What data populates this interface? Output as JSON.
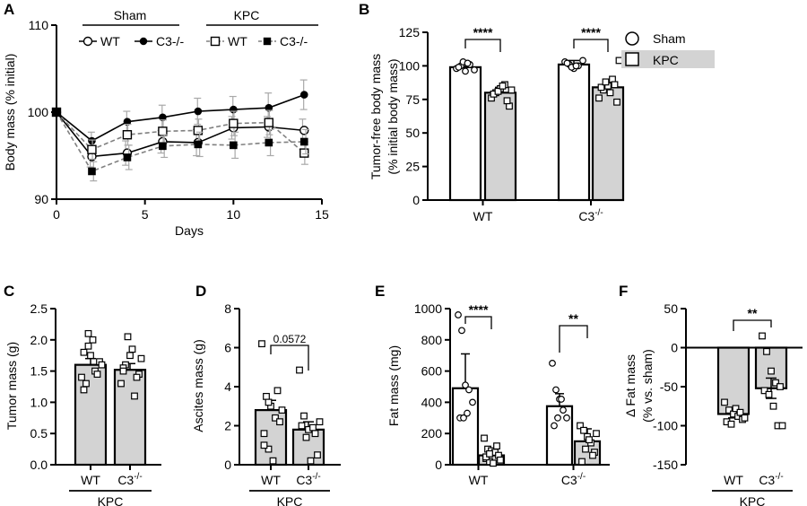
{
  "panel_labels": [
    "A",
    "B",
    "C",
    "D",
    "E",
    "F"
  ],
  "colors": {
    "sham": "#ffffff",
    "kpc": "#d3d3d3",
    "line": "#000000",
    "dash": "#808080",
    "err": "#a9a9a9"
  },
  "chart_data": [
    {
      "panel": "A",
      "type": "line",
      "xlabel": "Days",
      "ylabel": "Body mass (% initial)",
      "xlim": [
        0,
        15
      ],
      "ylim": [
        90,
        110
      ],
      "xticks": [
        0,
        5,
        10,
        15
      ],
      "yticks": [
        90,
        100,
        110
      ],
      "x": [
        0,
        2,
        4,
        6,
        8,
        10,
        12,
        14
      ],
      "legend": {
        "groups": [
          "Sham",
          "KPC"
        ],
        "series_labels": [
          "WT",
          "C3-/-",
          "WT",
          "C3-/-"
        ]
      },
      "series": [
        {
          "name": "Sham WT",
          "marker": "circle-open",
          "line": "solid",
          "values": [
            100,
            94.9,
            95.3,
            96.6,
            96.5,
            98.2,
            98.3,
            97.9
          ],
          "err": [
            0,
            1.2,
            1.4,
            1.3,
            1.5,
            1.3,
            1.2,
            1.3
          ]
        },
        {
          "name": "Sham C3-/-",
          "marker": "circle-filled",
          "line": "solid",
          "values": [
            100,
            96.7,
            98.9,
            99.4,
            100.1,
            100.3,
            100.5,
            102.0
          ],
          "err": [
            0,
            1.0,
            1.2,
            1.4,
            1.5,
            1.5,
            1.7,
            1.7
          ]
        },
        {
          "name": "KPC WT",
          "marker": "square-open",
          "line": "dashed",
          "values": [
            100,
            95.7,
            97.4,
            97.8,
            97.9,
            98.7,
            98.8,
            95.3
          ],
          "err": [
            0,
            1.1,
            1.2,
            1.3,
            1.3,
            1.4,
            1.4,
            1.3
          ]
        },
        {
          "name": "KPC C3-/-",
          "marker": "square-filled",
          "line": "dashed",
          "values": [
            100,
            93.2,
            94.8,
            96.1,
            96.3,
            96.2,
            96.5,
            96.6
          ],
          "err": [
            0,
            1.1,
            1.4,
            1.3,
            1.4,
            1.5,
            1.5,
            1.4
          ]
        }
      ]
    },
    {
      "panel": "B",
      "type": "bar",
      "ylabel": "Tumor-free body mass",
      "ylabel2": "(% initial body mass)",
      "ylim": [
        0,
        125
      ],
      "yticks": [
        0,
        25,
        50,
        75,
        100,
        125
      ],
      "categories": [
        "WT",
        "C3"
      ],
      "category_sup": [
        "",
        "-/-"
      ],
      "legend": [
        "Sham",
        "KPC"
      ],
      "series": [
        {
          "name": "Sham",
          "values": [
            99,
            101
          ],
          "err": [
            3,
            3
          ],
          "points": [
            [
              98,
              100,
              96,
              101,
              97,
              99,
              103,
              102
            ],
            [
              103,
              101,
              98,
              100,
              104,
              102,
              99,
              100
            ]
          ]
        },
        {
          "name": "KPC",
          "values": [
            80,
            84
          ],
          "err": [
            4,
            5
          ],
          "points": [
            [
              76,
              80,
              83,
              86,
              70,
              79,
              81,
              85,
              74,
              82
            ],
            [
              76,
              82,
              85,
              90,
              73,
              84,
              88,
              80,
              86,
              104
            ]
          ]
        }
      ],
      "significance": [
        "****",
        "****"
      ]
    },
    {
      "panel": "C",
      "type": "bar",
      "ylabel": "Tumor mass (g)",
      "ylim": [
        0,
        2.5
      ],
      "yticks": [
        0.0,
        0.5,
        1.0,
        1.5,
        2.0,
        2.5
      ],
      "ytick_labels": [
        "0.0",
        "0.5",
        "1.0",
        "1.5",
        "2.0",
        "2.5"
      ],
      "categories": [
        "WT",
        "C3"
      ],
      "category_sup": [
        "",
        "-/-"
      ],
      "group_label": "KPC",
      "values": [
        1.6,
        1.52
      ],
      "err": [
        0.1,
        0.1
      ],
      "points": [
        [
          1.4,
          1.3,
          1.75,
          1.5,
          1.65,
          1.2,
          1.9,
          2.0,
          1.45,
          1.6,
          1.8,
          2.1
        ],
        [
          1.3,
          1.6,
          1.75,
          1.1,
          1.45,
          1.55,
          2.05,
          1.85,
          1.4,
          1.7,
          1.5
        ]
      ]
    },
    {
      "panel": "D",
      "type": "bar",
      "ylabel": "Ascites mass (g)",
      "ylim": [
        0,
        8
      ],
      "yticks": [
        0,
        2,
        4,
        6,
        8
      ],
      "categories": [
        "WT",
        "C3"
      ],
      "category_sup": [
        "",
        "-/-"
      ],
      "group_label": "KPC",
      "values": [
        2.8,
        1.8
      ],
      "err": [
        0.5,
        0.4
      ],
      "points": [
        [
          6.2,
          3.5,
          3.0,
          2.4,
          2.2,
          1.6,
          0.8,
          0.2,
          3.8,
          2.8,
          1.0,
          3.2
        ],
        [
          4.85,
          2.5,
          1.8,
          1.9,
          0.5,
          2.0,
          1.4,
          0.2,
          1.6,
          2.2
        ]
      ],
      "pvalue": "0.0572"
    },
    {
      "panel": "E",
      "type": "bar",
      "ylabel": "Fat mass (mg)",
      "ylim": [
        0,
        1000
      ],
      "yticks": [
        0,
        200,
        400,
        600,
        800,
        1000
      ],
      "categories": [
        "WT",
        "C3"
      ],
      "category_sup": [
        "",
        "-/-"
      ],
      "series": [
        {
          "name": "Sham",
          "values": [
            490,
            375
          ],
          "err": [
            220,
            80
          ],
          "points": [
            [
              960,
              860,
              510,
              480,
              400,
              300,
              300,
              330
            ],
            [
              650,
              480,
              420,
              350,
              300,
              250,
              300,
              420
            ]
          ]
        },
        {
          "name": "KPC",
          "values": [
            60,
            150
          ],
          "err": [
            40,
            80
          ],
          "points": [
            [
              170,
              100,
              90,
              80,
              60,
              40,
              20,
              10,
              120,
              30,
              50,
              70
            ],
            [
              250,
              220,
              180,
              140,
              80,
              20,
              100,
              160,
              60,
              200
            ]
          ]
        }
      ],
      "significance": [
        "****",
        "**"
      ]
    },
    {
      "panel": "F",
      "type": "bar",
      "ylabel": "Δ Fat mass",
      "ylabel2": "(% vs. sham)",
      "ylim": [
        -150,
        50
      ],
      "yticks": [
        -150,
        -100,
        -50,
        0,
        50
      ],
      "categories": [
        "WT",
        "C3"
      ],
      "category_sup": [
        "",
        "-/-"
      ],
      "group_label": "KPC",
      "values": [
        -85,
        -52
      ],
      "err": [
        5,
        13
      ],
      "points": [
        [
          -70,
          -80,
          -85,
          -88,
          -92,
          -95,
          -98,
          -78,
          -83,
          -90
        ],
        [
          15,
          -5,
          -30,
          -45,
          -50,
          -55,
          -60,
          -75,
          -100,
          -100
        ]
      ],
      "significance": "**"
    }
  ]
}
